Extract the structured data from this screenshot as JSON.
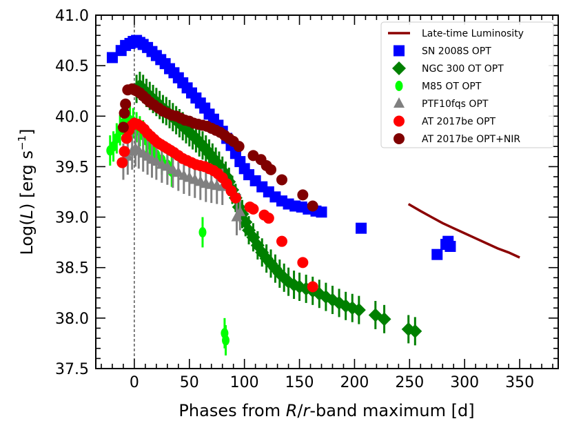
{
  "chart_data": {
    "type": "scatter",
    "xlabel_parts": [
      "Phases from ",
      "R",
      "/",
      "r",
      "-band maximum [d]"
    ],
    "ylabel_parts": [
      "Log(",
      "L",
      ") [erg s",
      "−1",
      "]"
    ],
    "xlim": [
      -35,
      385
    ],
    "ylim": [
      37.5,
      41.0
    ],
    "xticks": [
      0,
      50,
      100,
      150,
      200,
      250,
      300,
      350
    ],
    "yticks": [
      37.5,
      38.0,
      38.5,
      39.0,
      39.5,
      40.0,
      40.5,
      41.0
    ],
    "ytick_labels": [
      "37.5",
      "38.0",
      "38.5",
      "39.0",
      "39.5",
      "40.0",
      "40.5",
      "41.0"
    ],
    "vline_x": 0,
    "legend_position": "top-right",
    "series": [
      {
        "name": "SN 2008S OPT",
        "marker": "square",
        "color": "#0000ff",
        "points": [
          [
            -20,
            40.58
          ],
          [
            -12,
            40.65
          ],
          [
            -8,
            40.7
          ],
          [
            -4,
            40.72
          ],
          [
            -1,
            40.74
          ],
          [
            2,
            40.75
          ],
          [
            5,
            40.73
          ],
          [
            8,
            40.71
          ],
          [
            12,
            40.68
          ],
          [
            16,
            40.64
          ],
          [
            20,
            40.6
          ],
          [
            24,
            40.56
          ],
          [
            28,
            40.52
          ],
          [
            32,
            40.47
          ],
          [
            36,
            40.43
          ],
          [
            40,
            40.38
          ],
          [
            44,
            40.33
          ],
          [
            48,
            40.28
          ],
          [
            52,
            40.23
          ],
          [
            56,
            40.18
          ],
          [
            60,
            40.13
          ],
          [
            64,
            40.08
          ],
          [
            68,
            40.02
          ],
          [
            72,
            39.97
          ],
          [
            76,
            39.91
          ],
          [
            80,
            39.85
          ],
          [
            84,
            39.78
          ],
          [
            88,
            39.71
          ],
          [
            92,
            39.63
          ],
          [
            96,
            39.55
          ],
          [
            100,
            39.48
          ],
          [
            104,
            39.42
          ],
          [
            110,
            39.36
          ],
          [
            116,
            39.3
          ],
          [
            122,
            39.25
          ],
          [
            128,
            39.2
          ],
          [
            134,
            39.16
          ],
          [
            140,
            39.13
          ],
          [
            146,
            39.11
          ],
          [
            152,
            39.1
          ],
          [
            158,
            39.08
          ],
          [
            165,
            39.06
          ],
          [
            170,
            39.05
          ],
          [
            206,
            38.89
          ],
          [
            275,
            38.63
          ],
          [
            283,
            38.73
          ],
          [
            285,
            38.76
          ],
          [
            287,
            38.71
          ]
        ]
      },
      {
        "name": "NGC 300 OT OPT",
        "marker": "diamond",
        "color": "#008000",
        "err": 0.14,
        "points": [
          [
            2,
            40.27
          ],
          [
            5,
            40.3
          ],
          [
            8,
            40.27
          ],
          [
            11,
            40.23
          ],
          [
            14,
            40.2
          ],
          [
            17,
            40.17
          ],
          [
            20,
            40.14
          ],
          [
            23,
            40.11
          ],
          [
            26,
            40.07
          ],
          [
            29,
            40.05
          ],
          [
            32,
            40.02
          ],
          [
            35,
            39.99
          ],
          [
            38,
            39.96
          ],
          [
            41,
            39.93
          ],
          [
            44,
            39.9
          ],
          [
            47,
            39.87
          ],
          [
            50,
            39.84
          ],
          [
            53,
            39.81
          ],
          [
            56,
            39.78
          ],
          [
            59,
            39.74
          ],
          [
            62,
            39.71
          ],
          [
            65,
            39.67
          ],
          [
            68,
            39.63
          ],
          [
            71,
            39.59
          ],
          [
            74,
            39.55
          ],
          [
            77,
            39.51
          ],
          [
            80,
            39.46
          ],
          [
            83,
            39.41
          ],
          [
            86,
            39.35
          ],
          [
            89,
            39.27
          ],
          [
            92,
            39.19
          ],
          [
            95,
            39.1
          ],
          [
            98,
            39.03
          ],
          [
            101,
            38.95
          ],
          [
            104,
            38.87
          ],
          [
            108,
            38.8
          ],
          [
            112,
            38.72
          ],
          [
            116,
            38.65
          ],
          [
            120,
            38.59
          ],
          [
            124,
            38.54
          ],
          [
            128,
            38.49
          ],
          [
            132,
            38.44
          ],
          [
            136,
            38.4
          ],
          [
            140,
            38.36
          ],
          [
            145,
            38.33
          ],
          [
            150,
            38.31
          ],
          [
            156,
            38.29
          ],
          [
            162,
            38.27
          ],
          [
            168,
            38.24
          ],
          [
            174,
            38.21
          ],
          [
            180,
            38.18
          ],
          [
            186,
            38.15
          ],
          [
            192,
            38.12
          ],
          [
            198,
            38.1
          ],
          [
            204,
            38.08
          ],
          [
            219,
            38.03
          ],
          [
            227,
            37.99
          ],
          [
            249,
            37.89
          ],
          [
            255,
            37.87
          ]
        ]
      },
      {
        "name": "M85 OT OPT",
        "marker": "circle-small",
        "color": "#00ff00",
        "err": 0.15,
        "points": [
          [
            -22,
            39.66
          ],
          [
            -19,
            39.7
          ],
          [
            -16,
            39.78
          ],
          [
            -13,
            39.86
          ],
          [
            -10,
            39.93
          ],
          [
            -7,
            39.97
          ],
          [
            -4,
            39.96
          ],
          [
            -1,
            39.93
          ],
          [
            2,
            39.89
          ],
          [
            5,
            39.85
          ],
          [
            8,
            39.81
          ],
          [
            11,
            39.76
          ],
          [
            14,
            39.72
          ],
          [
            17,
            39.66
          ],
          [
            20,
            39.62
          ],
          [
            25,
            39.57
          ],
          [
            30,
            39.52
          ],
          [
            34,
            39.45
          ],
          [
            62,
            38.85
          ],
          [
            82,
            37.85
          ],
          [
            83,
            37.78
          ]
        ]
      },
      {
        "name": "PTF10fqs OPT",
        "marker": "triangle",
        "color": "#808080",
        "err": 0.18,
        "points": [
          [
            -10,
            39.55
          ],
          [
            -6,
            39.6
          ],
          [
            -2,
            39.65
          ],
          [
            1,
            39.68
          ],
          [
            4,
            39.66
          ],
          [
            8,
            39.63
          ],
          [
            12,
            39.6
          ],
          [
            16,
            39.57
          ],
          [
            20,
            39.55
          ],
          [
            25,
            39.52
          ],
          [
            30,
            39.5
          ],
          [
            35,
            39.47
          ],
          [
            40,
            39.44
          ],
          [
            45,
            39.41
          ],
          [
            50,
            39.39
          ],
          [
            55,
            39.37
          ],
          [
            60,
            39.35
          ],
          [
            65,
            39.33
          ],
          [
            70,
            39.32
          ],
          [
            75,
            39.31
          ],
          [
            80,
            39.3
          ],
          [
            93,
            39.0
          ],
          [
            96,
            39.05
          ]
        ]
      },
      {
        "name": "AT 2017be OPT",
        "marker": "circle",
        "color": "#ff0000",
        "points": [
          [
            -11,
            39.54
          ],
          [
            -9,
            39.65
          ],
          [
            -7,
            39.78
          ],
          [
            -5,
            39.86
          ],
          [
            -2,
            39.91
          ],
          [
            0,
            39.93
          ],
          [
            3,
            39.92
          ],
          [
            6,
            39.9
          ],
          [
            9,
            39.87
          ],
          [
            12,
            39.83
          ],
          [
            15,
            39.8
          ],
          [
            18,
            39.77
          ],
          [
            21,
            39.74
          ],
          [
            24,
            39.72
          ],
          [
            27,
            39.7
          ],
          [
            30,
            39.68
          ],
          [
            33,
            39.66
          ],
          [
            36,
            39.64
          ],
          [
            40,
            39.61
          ],
          [
            44,
            39.58
          ],
          [
            48,
            39.56
          ],
          [
            52,
            39.54
          ],
          [
            56,
            39.52
          ],
          [
            60,
            39.51
          ],
          [
            64,
            39.5
          ],
          [
            68,
            39.48
          ],
          [
            72,
            39.46
          ],
          [
            76,
            39.43
          ],
          [
            80,
            39.39
          ],
          [
            84,
            39.33
          ],
          [
            88,
            39.26
          ],
          [
            92,
            39.19
          ],
          [
            105,
            39.1
          ],
          [
            108,
            39.08
          ],
          [
            118,
            39.02
          ],
          [
            122,
            38.99
          ],
          [
            134,
            38.76
          ],
          [
            153,
            38.55
          ],
          [
            162,
            38.31
          ]
        ]
      },
      {
        "name": "AT 2017be OPT+NIR",
        "marker": "circle",
        "color": "#800000",
        "points": [
          [
            -10,
            39.89
          ],
          [
            -9,
            40.03
          ],
          [
            -8,
            40.12
          ],
          [
            -6,
            40.26
          ],
          [
            -2,
            40.27
          ],
          [
            0,
            40.26
          ],
          [
            2,
            40.25
          ],
          [
            5,
            40.23
          ],
          [
            8,
            40.2
          ],
          [
            11,
            40.17
          ],
          [
            14,
            40.14
          ],
          [
            18,
            40.11
          ],
          [
            22,
            40.08
          ],
          [
            26,
            40.05
          ],
          [
            30,
            40.03
          ],
          [
            34,
            40.01
          ],
          [
            38,
            40.0
          ],
          [
            42,
            39.98
          ],
          [
            46,
            39.96
          ],
          [
            50,
            39.95
          ],
          [
            54,
            39.93
          ],
          [
            58,
            39.92
          ],
          [
            62,
            39.91
          ],
          [
            66,
            39.9
          ],
          [
            70,
            39.88
          ],
          [
            74,
            39.86
          ],
          [
            78,
            39.84
          ],
          [
            82,
            39.81
          ],
          [
            86,
            39.78
          ],
          [
            90,
            39.75
          ],
          [
            95,
            39.7
          ],
          [
            108,
            39.61
          ],
          [
            115,
            39.57
          ],
          [
            120,
            39.51
          ],
          [
            124,
            39.47
          ],
          [
            134,
            39.37
          ],
          [
            153,
            39.22
          ],
          [
            162,
            39.11
          ]
        ]
      },
      {
        "name": "Late-time Luminosity",
        "marker": "line",
        "color": "#8b0000",
        "points": [
          [
            249,
            39.13
          ],
          [
            260,
            39.06
          ],
          [
            270,
            39.0
          ],
          [
            280,
            38.94
          ],
          [
            290,
            38.89
          ],
          [
            300,
            38.84
          ],
          [
            310,
            38.79
          ],
          [
            320,
            38.74
          ],
          [
            330,
            38.69
          ],
          [
            340,
            38.65
          ],
          [
            350,
            38.6
          ]
        ]
      }
    ],
    "legend_order": [
      "Late-time Luminosity",
      "SN 2008S OPT",
      "NGC 300 OT OPT",
      "M85 OT OPT",
      "PTF10fqs OPT",
      "AT 2017be OPT",
      "AT 2017be OPT+NIR"
    ]
  }
}
